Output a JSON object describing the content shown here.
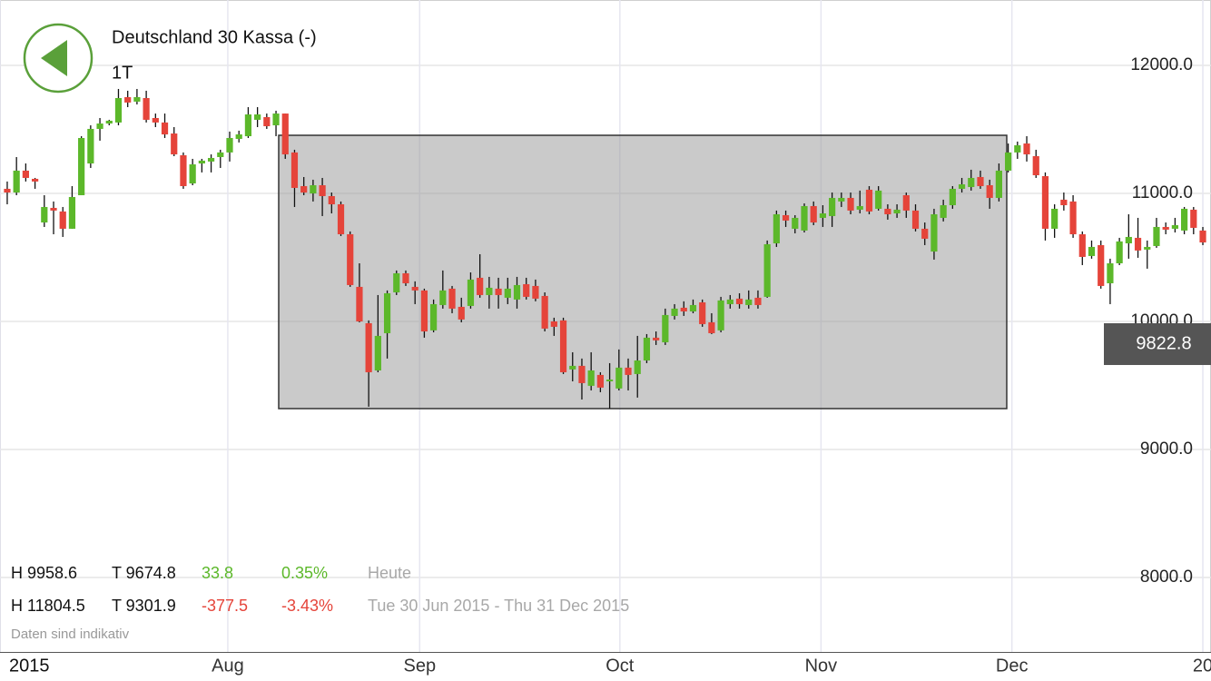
{
  "chart_data": {
    "type": "candlestick",
    "title": "Deutschland 30 Kassa (-)",
    "subtitle": "1T",
    "up_color": "#5cb82a",
    "down_color": "#e5443a",
    "wick_color": "#111111",
    "grid": true,
    "last_price": 9822.8,
    "xlim": [
      -0.78,
      129.88
    ],
    "xticks": [
      {
        "value": -0.78,
        "label": "2015"
      },
      {
        "value": 23.8,
        "label": "Aug"
      },
      {
        "value": 44.5,
        "label": "Sep"
      },
      {
        "value": 66.1,
        "label": "Oct"
      },
      {
        "value": 87.8,
        "label": "Nov"
      },
      {
        "value": 108.4,
        "label": "Dec"
      },
      {
        "value": 129.0,
        "label": "20"
      }
    ],
    "ylim": [
      7418,
      12511
    ],
    "yticks": [
      {
        "value": 8000,
        "label": "8000.0"
      },
      {
        "value": 9000,
        "label": "9000.0"
      },
      {
        "value": 10000,
        "label": "10000.0"
      },
      {
        "value": 11000,
        "label": "11000.0"
      },
      {
        "value": 12000,
        "label": "12000.0"
      }
    ],
    "open": [
      11036,
      11007,
      11178,
      11114,
      10773,
      10887,
      10859,
      10724,
      10986,
      11234,
      11504,
      11546,
      11554,
      11752,
      11717,
      11745,
      11589,
      11554,
      11468,
      11298,
      11078,
      11234,
      11249,
      11284,
      11320,
      11426,
      11447,
      11575,
      11596,
      11532,
      11624,
      11320,
      11057,
      11000,
      11064,
      10979,
      10915,
      10681,
      10270,
      9986,
      9617,
      9908,
      10227,
      10376,
      10270,
      10242,
      9930,
      10128,
      10256,
      10114,
      10121,
      10341,
      10206,
      10256,
      10185,
      10171,
      10291,
      10277,
      10199,
      10000,
      10008,
      9625,
      9653,
      9497,
      9582,
      9532,
      9476,
      9639,
      9589,
      9695,
      9873,
      9837,
      10043,
      10107,
      10078,
      10149,
      9993,
      9930,
      10135,
      10178,
      10128,
      10185,
      10192,
      10610,
      10830,
      10724,
      10710,
      10901,
      10809,
      10823,
      10937,
      10965,
      10873,
      11029,
      10880,
      10880,
      10844,
      10986,
      10866,
      10724,
      10546,
      10809,
      10908,
      11036,
      11050,
      11128,
      11064,
      10965,
      11178,
      11320,
      11390,
      11291,
      11135,
      10724,
      10951,
      10937,
      10681,
      10511,
      10596,
      10298,
      10454,
      10610,
      10653,
      10561,
      10589,
      10738,
      10724,
      10710,
      10873,
      10710
    ],
    "high": [
      11093,
      11284,
      11234,
      11121,
      10986,
      10937,
      10894,
      11057,
      11447,
      11532,
      11589,
      11575,
      11816,
      11802,
      11816,
      11802,
      11624,
      11624,
      11518,
      11320,
      11270,
      11270,
      11305,
      11341,
      11483,
      11490,
      11674,
      11674,
      11624,
      11646,
      11624,
      11341,
      11128,
      11107,
      11121,
      11007,
      10937,
      10703,
      10454,
      10008,
      10206,
      10242,
      10398,
      10398,
      10313,
      10256,
      10171,
      10398,
      10277,
      10185,
      10383,
      10525,
      10348,
      10341,
      10341,
      10348,
      10341,
      10327,
      10227,
      10029,
      10029,
      9759,
      9710,
      9759,
      9603,
      9674,
      9781,
      9710,
      9887,
      9901,
      9922,
      10100,
      10135,
      10157,
      10171,
      10171,
      10064,
      10192,
      10206,
      10220,
      10242,
      10242,
      10632,
      10866,
      10866,
      10830,
      10922,
      10937,
      10908,
      11007,
      11007,
      11007,
      11022,
      11057,
      11057,
      10915,
      10915,
      11007,
      10915,
      10773,
      10880,
      10951,
      11057,
      11121,
      11185,
      11178,
      11107,
      11234,
      11390,
      11405,
      11447,
      11341,
      11164,
      10915,
      11007,
      10986,
      10703,
      10632,
      10632,
      10490,
      10653,
      10837,
      10809,
      10632,
      10809,
      10773,
      10809,
      10894,
      10894,
      10738
    ],
    "low": [
      10915,
      10986,
      11093,
      11036,
      10738,
      10681,
      10660,
      10724,
      10986,
      11199,
      11412,
      11532,
      11532,
      11674,
      11695,
      11554,
      11518,
      11433,
      11291,
      11036,
      11064,
      11164,
      11164,
      11199,
      11249,
      11398,
      11433,
      11518,
      11504,
      11447,
      11270,
      10894,
      10986,
      10937,
      10823,
      10844,
      10667,
      10270,
      9993,
      9334,
      9603,
      9710,
      10206,
      10277,
      10135,
      9873,
      9915,
      10100,
      10064,
      9993,
      10100,
      10185,
      10100,
      10100,
      10135,
      10100,
      10171,
      10157,
      9922,
      9887,
      9589,
      9532,
      9390,
      9461,
      9447,
      9320,
      9461,
      9461,
      9405,
      9674,
      9816,
      9816,
      10015,
      10043,
      10064,
      9958,
      9901,
      9915,
      10100,
      10100,
      10100,
      10100,
      10185,
      10582,
      10738,
      10688,
      10695,
      10752,
      10738,
      10738,
      10894,
      10837,
      10844,
      10837,
      10866,
      10795,
      10809,
      10809,
      10703,
      10596,
      10483,
      10781,
      10880,
      11007,
      11022,
      11036,
      10880,
      10937,
      11164,
      11270,
      11249,
      11121,
      10632,
      10653,
      10866,
      10653,
      10440,
      10490,
      10256,
      10135,
      10440,
      10490,
      10497,
      10412,
      10575,
      10681,
      10695,
      10681,
      10681,
      10596
    ],
    "close": [
      11007,
      11178,
      11121,
      11093,
      10894,
      10866,
      10724,
      10972,
      11433,
      11504,
      11546,
      11568,
      11745,
      11710,
      11752,
      11575,
      11554,
      11461,
      11305,
      11057,
      11227,
      11256,
      11277,
      11320,
      11433,
      11461,
      11617,
      11617,
      11525,
      11624,
      11305,
      11043,
      11007,
      11064,
      10979,
      10915,
      10681,
      10284,
      10000,
      9603,
      9887,
      10220,
      10376,
      10298,
      10242,
      9922,
      10135,
      10242,
      10100,
      10015,
      10327,
      10206,
      10263,
      10206,
      10256,
      10284,
      10192,
      10178,
      9944,
      9958,
      9603,
      9653,
      9518,
      9617,
      9483,
      9546,
      9639,
      9582,
      9695,
      9873,
      9852,
      10050,
      10100,
      10078,
      10128,
      9979,
      9908,
      10164,
      10171,
      10135,
      10171,
      10128,
      10603,
      10837,
      10788,
      10809,
      10901,
      10773,
      10844,
      10965,
      10965,
      10866,
      10901,
      10859,
      11022,
      10837,
      10873,
      10866,
      10724,
      10646,
      10837,
      10908,
      11036,
      11071,
      11121,
      11057,
      10965,
      11178,
      11320,
      11376,
      11305,
      11142,
      10724,
      10880,
      10908,
      10681,
      10504,
      10582,
      10277,
      10454,
      10625,
      10660,
      10554,
      10582,
      10738,
      10717,
      10752,
      10880,
      10731,
      10617
    ]
  },
  "stats": {
    "rows": [
      [
        "H 9958.6",
        "T 9674.8",
        "33.8",
        "0.35%",
        "Heute"
      ],
      [
        "H 11804.5",
        "T 9301.9",
        "-377.5",
        "-3.43%",
        "Tue 30 Jun 2015 - Thu 31 Dec 2015"
      ]
    ],
    "note": "Daten sind indikativ"
  }
}
